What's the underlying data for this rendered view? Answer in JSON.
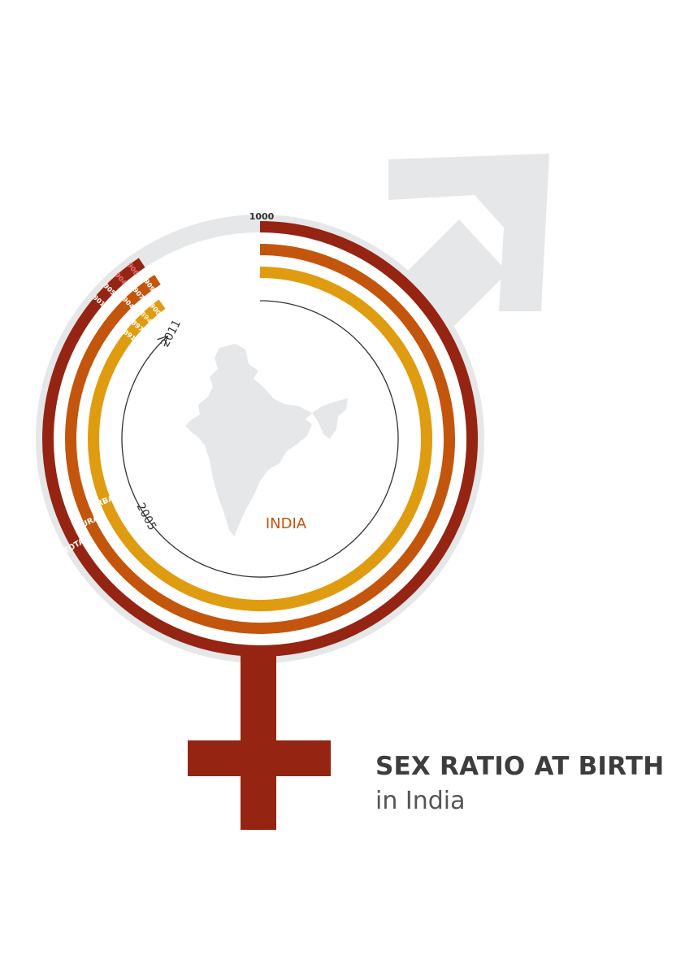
{
  "chart_data": {
    "type": "radial-bar",
    "title": "SEX RATIO AT BIRTH",
    "subtitle": "in India",
    "scale_max_label": "1000",
    "scale_max": 1000,
    "region_label": "INDIA",
    "time_axis": {
      "start": "2005",
      "end": "2011"
    },
    "series": [
      {
        "name": "TOTAL",
        "color": "#952412",
        "label_colors": [
          "#ffffff",
          "#ffffff",
          "#ee7272",
          "#ee7272"
        ]
      },
      {
        "name": "RURAL",
        "color": "#c4550c",
        "label_colors": [
          "#ffffff",
          "#ffffff",
          "#ffffff"
        ]
      },
      {
        "name": "URBAN",
        "color": "#e09c10",
        "label_colors": [
          "#ffffff",
          "#ffffff",
          "#fff2c8",
          "#ffffff"
        ]
      }
    ],
    "series_values": {
      "TOTAL": {
        "labels": [
          "901",
          "905",
          "904",
          "906"
        ],
        "values": [
          901,
          905,
          904,
          906
        ]
      },
      "RURAL": {
        "labels": [
          "904",
          "907",
          "909"
        ],
        "values": [
          904,
          907,
          909
        ]
      },
      "URBAN": {
        "labels": [
          "891",
          "897",
          "894",
          "900"
        ],
        "values": [
          891,
          897,
          894,
          900
        ]
      }
    },
    "colors": {
      "track": "#e6e7e8",
      "male_symbol": "#e6e7e8",
      "female_symbol": "#952412",
      "map": "#e6e7e8",
      "india_label": "#c4550c",
      "axis": "#333333"
    },
    "icons": [
      "male-symbol-arrow-icon",
      "female-symbol-cross-icon",
      "india-map-icon"
    ]
  }
}
